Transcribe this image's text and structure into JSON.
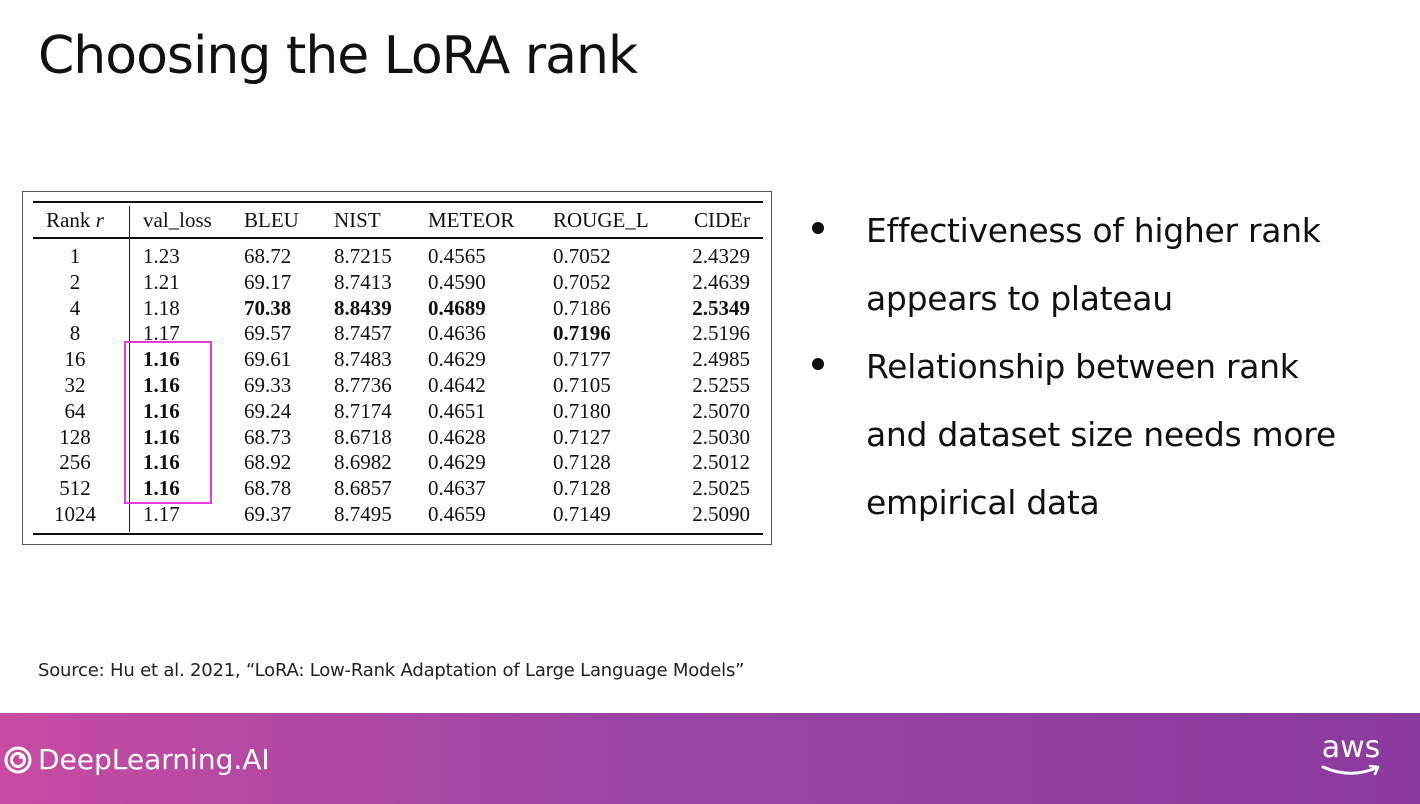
{
  "slide": {
    "title": "Choosing the LoRA rank",
    "bullets": [
      "Effectiveness of higher rank appears to plateau",
      "Relationship between rank and dataset size needs more empirical data"
    ],
    "source": "Source:  Hu et al. 2021, “LoRA: Low-Rank Adaptation of Large Language Models”"
  },
  "table": {
    "headers": [
      "Rank r",
      "val_loss",
      "BLEU",
      "NIST",
      "METEOR",
      "ROUGE_L",
      "CIDEr"
    ],
    "rows": [
      [
        "1",
        "1.23",
        "68.72",
        "8.7215",
        "0.4565",
        "0.7052",
        "2.4329"
      ],
      [
        "2",
        "1.21",
        "69.17",
        "8.7413",
        "0.4590",
        "0.7052",
        "2.4639"
      ],
      [
        "4",
        "1.18",
        "70.38",
        "8.8439",
        "0.4689",
        "0.7186",
        "2.5349"
      ],
      [
        "8",
        "1.17",
        "69.57",
        "8.7457",
        "0.4636",
        "0.7196",
        "2.5196"
      ],
      [
        "16",
        "1.16",
        "69.61",
        "8.7483",
        "0.4629",
        "0.7177",
        "2.4985"
      ],
      [
        "32",
        "1.16",
        "69.33",
        "8.7736",
        "0.4642",
        "0.7105",
        "2.5255"
      ],
      [
        "64",
        "1.16",
        "69.24",
        "8.7174",
        "0.4651",
        "0.7180",
        "2.5070"
      ],
      [
        "128",
        "1.16",
        "68.73",
        "8.6718",
        "0.4628",
        "0.7127",
        "2.5030"
      ],
      [
        "256",
        "1.16",
        "68.92",
        "8.6982",
        "0.4629",
        "0.7128",
        "2.5012"
      ],
      [
        "512",
        "1.16",
        "68.78",
        "8.6857",
        "0.4637",
        "0.7128",
        "2.5025"
      ],
      [
        "1024",
        "1.17",
        "69.37",
        "8.7495",
        "0.4659",
        "0.7149",
        "2.5090"
      ]
    ],
    "bold_cells": [
      [
        2,
        2
      ],
      [
        2,
        3
      ],
      [
        2,
        4
      ],
      [
        2,
        6
      ],
      [
        3,
        5
      ],
      [
        4,
        1
      ],
      [
        5,
        1
      ],
      [
        6,
        1
      ],
      [
        7,
        1
      ],
      [
        8,
        1
      ],
      [
        9,
        1
      ]
    ],
    "highlight_color": "#e23ce0"
  },
  "footer": {
    "brand": "DeepLearning.AI",
    "partner_logo": "aws",
    "brand_icon": "deeplearning-ai-logo-icon",
    "partner_icon": "aws-smile-icon",
    "gradient_start": "#c64ba1",
    "gradient_end": "#8b3a9e"
  }
}
